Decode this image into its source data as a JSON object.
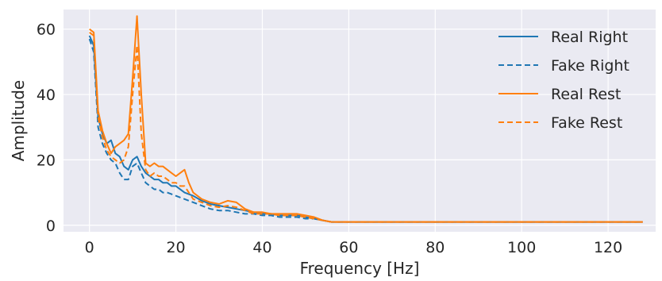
{
  "chart_data": {
    "type": "line",
    "title": "",
    "xlabel": "Frequency [Hz]",
    "ylabel": "Amplitude",
    "xlim": [
      -6,
      131
    ],
    "ylim": [
      -2,
      66
    ],
    "x_ticks": [
      0,
      20,
      40,
      60,
      80,
      100,
      120
    ],
    "y_ticks": [
      0,
      20,
      40,
      60
    ],
    "grid": true,
    "legend_position": "top-right",
    "series": [
      {
        "name": "Real Right",
        "color": "#1f77b4",
        "dash": "solid",
        "x": [
          0,
          1,
          2,
          3,
          4,
          5,
          6,
          7,
          8,
          9,
          10,
          11,
          12,
          13,
          14,
          15,
          16,
          17,
          18,
          19,
          20,
          22,
          24,
          26,
          28,
          30,
          32,
          34,
          36,
          38,
          40,
          42,
          44,
          46,
          48,
          50,
          52,
          54,
          56,
          60,
          70,
          80,
          90,
          100,
          110,
          120,
          128
        ],
        "y": [
          58,
          55,
          33,
          28,
          25,
          26,
          22,
          21,
          18,
          17,
          20,
          21,
          18,
          16,
          15,
          14,
          14,
          13,
          13,
          12,
          12,
          10,
          9,
          7.5,
          6.5,
          6,
          5.5,
          5,
          4.5,
          4,
          3.5,
          3.5,
          3,
          3,
          3,
          2.5,
          2,
          1.5,
          1,
          1,
          1,
          1,
          1,
          1,
          1,
          1,
          1
        ]
      },
      {
        "name": "Fake Right",
        "color": "#1f77b4",
        "dash": "dashed",
        "x": [
          0,
          1,
          2,
          3,
          4,
          5,
          6,
          7,
          8,
          9,
          10,
          11,
          12,
          13,
          14,
          15,
          16,
          17,
          18,
          19,
          20,
          22,
          24,
          26,
          28,
          30,
          32,
          34,
          36,
          38,
          40,
          42,
          44,
          46,
          48,
          50,
          52,
          54,
          56,
          60,
          70,
          80,
          90,
          100,
          110,
          120,
          128
        ],
        "y": [
          57,
          53,
          30,
          25,
          22,
          20,
          19,
          16,
          14,
          14,
          18,
          19,
          16,
          13,
          12,
          11,
          11,
          10,
          10,
          9.5,
          9,
          8,
          7,
          6,
          5,
          4.5,
          4.5,
          4,
          3.5,
          3.5,
          3,
          3,
          2.5,
          2.5,
          2.5,
          2,
          2,
          1.5,
          1,
          1,
          1,
          1,
          1,
          1,
          1,
          1,
          1
        ]
      },
      {
        "name": "Real Rest",
        "color": "#ff7f0e",
        "dash": "solid",
        "x": [
          0,
          1,
          2,
          3,
          4,
          5,
          6,
          7,
          8,
          9,
          10,
          11,
          12,
          13,
          14,
          15,
          16,
          17,
          18,
          19,
          20,
          21,
          22,
          23,
          24,
          26,
          28,
          30,
          32,
          34,
          36,
          38,
          40,
          42,
          44,
          46,
          48,
          50,
          52,
          54,
          56,
          60,
          70,
          80,
          90,
          100,
          110,
          120,
          128
        ],
        "y": [
          60,
          59,
          35,
          29,
          25,
          22,
          24,
          25,
          26,
          28,
          45,
          64,
          40,
          19,
          18,
          19,
          18,
          18,
          17,
          16,
          15,
          16,
          17,
          13,
          10,
          8,
          7,
          6.5,
          7.5,
          7,
          5,
          4,
          4,
          3.5,
          3.5,
          3.5,
          3.5,
          3,
          2.5,
          1.5,
          1,
          1,
          1,
          1,
          1,
          1,
          1,
          1,
          1
        ]
      },
      {
        "name": "Fake Rest",
        "color": "#ff7f0e",
        "dash": "dashed",
        "x": [
          0,
          1,
          2,
          3,
          4,
          5,
          6,
          7,
          8,
          9,
          10,
          11,
          12,
          13,
          14,
          15,
          16,
          17,
          18,
          19,
          20,
          21,
          22,
          23,
          24,
          26,
          28,
          30,
          32,
          34,
          36,
          38,
          40,
          42,
          44,
          46,
          48,
          50,
          52,
          54,
          56,
          60,
          70,
          80,
          90,
          100,
          110,
          120,
          128
        ],
        "y": [
          59,
          58,
          33,
          27,
          23,
          21,
          20,
          19,
          20,
          24,
          40,
          55,
          28,
          17,
          15,
          16,
          15,
          15,
          14,
          13,
          13,
          12,
          12,
          10,
          8,
          7,
          6,
          5.5,
          6,
          5.5,
          4.5,
          3.5,
          3.5,
          3.5,
          3,
          3,
          3,
          2.5,
          2,
          1.5,
          1,
          1,
          1,
          1,
          1,
          1,
          1,
          1,
          1
        ]
      }
    ]
  }
}
